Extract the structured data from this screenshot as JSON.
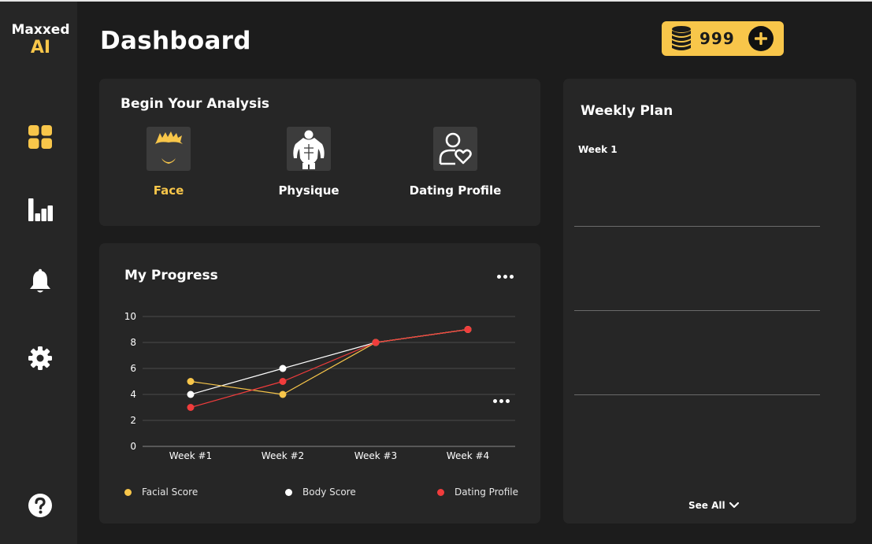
{
  "brand": {
    "line1": "Maxxed",
    "line2": "AI"
  },
  "sidebar": {
    "items": [
      {
        "name": "dashboard",
        "icon": "grid-icon",
        "active": true
      },
      {
        "name": "stats",
        "icon": "bar-chart-icon",
        "active": false
      },
      {
        "name": "notifications",
        "icon": "bell-icon",
        "active": false
      },
      {
        "name": "settings",
        "icon": "gear-icon",
        "active": false
      }
    ],
    "help_icon": "help-icon"
  },
  "header": {
    "title": "Dashboard"
  },
  "coins": {
    "value": "999",
    "icon": "coin-stack-icon",
    "add_icon": "plus-icon"
  },
  "analysis": {
    "title": "Begin Your Analysis",
    "items": [
      {
        "label": "Face",
        "icon": "face-icon",
        "active": true
      },
      {
        "label": "Physique",
        "icon": "physique-icon",
        "active": false
      },
      {
        "label": "Dating Profile",
        "icon": "dating-profile-icon",
        "active": false
      }
    ]
  },
  "progress": {
    "title": "My Progress",
    "more_icon": "more-icon"
  },
  "chart_data": {
    "type": "line",
    "title": "My Progress",
    "categories": [
      "Week #1",
      "Week #2",
      "Week #3",
      "Week #4"
    ],
    "ylim": [
      0,
      10
    ],
    "yticks": [
      0,
      2,
      4,
      6,
      8,
      10
    ],
    "grid": true,
    "legend_position": "bottom",
    "series": [
      {
        "name": "Facial Score",
        "color": "#f8c64a",
        "values": [
          5,
          4,
          8,
          9
        ]
      },
      {
        "name": "Body Score",
        "color": "#ffffff",
        "values": [
          4,
          6,
          8,
          9
        ]
      },
      {
        "name": "Dating Profile",
        "color": "#f03c3c",
        "values": [
          3,
          5,
          8,
          9
        ]
      }
    ]
  },
  "weekly_plan": {
    "title": "Weekly Plan",
    "week_label": "Week 1",
    "see_all": "See All"
  },
  "colors": {
    "accent": "#f8c64a",
    "card": "#262626",
    "background": "#1c1c1c"
  }
}
